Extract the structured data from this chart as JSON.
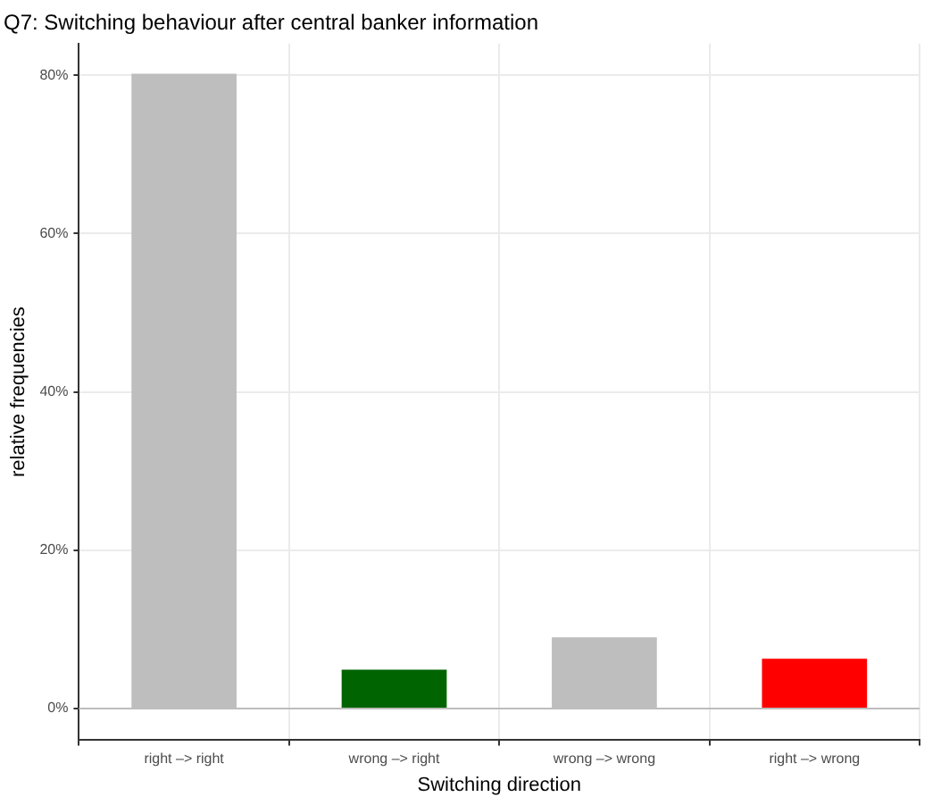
{
  "chart_data": {
    "type": "bar",
    "title": "Q7: Switching behaviour after central banker information",
    "xlabel": "Switching direction",
    "ylabel": "relative frequencies",
    "categories": [
      "right –> right",
      "wrong –> right",
      "wrong –> wrong",
      "right –> wrong"
    ],
    "values": [
      80.2,
      4.9,
      9.0,
      6.3
    ],
    "colors": [
      "#bebebe",
      "#006400",
      "#bebebe",
      "#ff0000"
    ],
    "ylim": [
      -4,
      84
    ],
    "yticks": [
      {
        "value": 0,
        "label": "0%"
      },
      {
        "value": 20,
        "label": "20%"
      },
      {
        "value": 40,
        "label": "40%"
      },
      {
        "value": 60,
        "label": "60%"
      },
      {
        "value": 80,
        "label": "80%"
      }
    ],
    "grid": true,
    "legend": false
  }
}
